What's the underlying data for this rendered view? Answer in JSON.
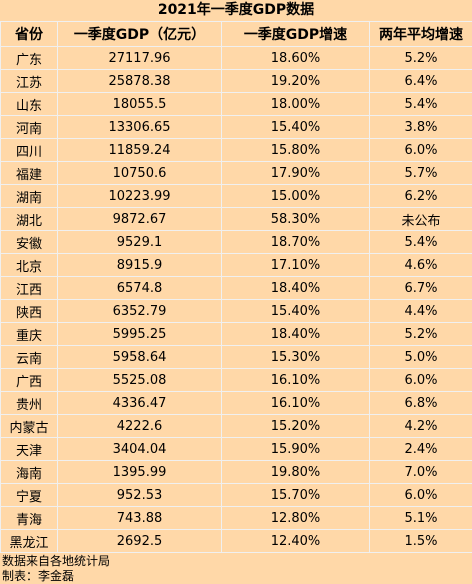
{
  "title": "2021年一季度GDP数据",
  "columns": [
    "省份",
    "一季度GDP（亿元）",
    "一季度GDP增速",
    "两年平均增速"
  ],
  "rows": [
    [
      "广东",
      "27117.96",
      "18.60%",
      "5.2%"
    ],
    [
      "江苏",
      "25878.38",
      "19.20%",
      "6.4%"
    ],
    [
      "山东",
      "18055.5",
      "18.00%",
      "5.4%"
    ],
    [
      "河南",
      "13306.65",
      "15.40%",
      "3.8%"
    ],
    [
      "四川",
      "11859.24",
      "15.80%",
      "6.0%"
    ],
    [
      "福建",
      "10750.6",
      "17.90%",
      "5.7%"
    ],
    [
      "湖南",
      "10223.99",
      "15.00%",
      "6.2%"
    ],
    [
      "湖北",
      "9872.67",
      "58.30%",
      "未公布"
    ],
    [
      "安徽",
      "9529.1",
      "18.70%",
      "5.4%"
    ],
    [
      "北京",
      "8915.9",
      "17.10%",
      "4.6%"
    ],
    [
      "江西",
      "6574.8",
      "18.40%",
      "6.7%"
    ],
    [
      "陕西",
      "6352.79",
      "15.40%",
      "4.4%"
    ],
    [
      "重庆",
      "5995.25",
      "18.40%",
      "5.2%"
    ],
    [
      "云南",
      "5958.64",
      "15.30%",
      "5.0%"
    ],
    [
      "广西",
      "5525.08",
      "16.10%",
      "6.0%"
    ],
    [
      "贵州",
      "4336.47",
      "16.10%",
      "6.8%"
    ],
    [
      "内蒙古",
      "4222.6",
      "15.20%",
      "4.2%"
    ],
    [
      "天津",
      "3404.04",
      "15.90%",
      "2.4%"
    ],
    [
      "海南",
      "1395.99",
      "19.80%",
      "7.0%"
    ],
    [
      "宁夏",
      "952.53",
      "15.70%",
      "6.0%"
    ],
    [
      "青海",
      "743.88",
      "12.80%",
      "5.1%"
    ],
    [
      "黑龙江",
      "2692.5",
      "12.40%",
      "1.5%"
    ]
  ],
  "footer": {
    "source": "数据来自各地统计局",
    "author": "制表：李金磊"
  }
}
